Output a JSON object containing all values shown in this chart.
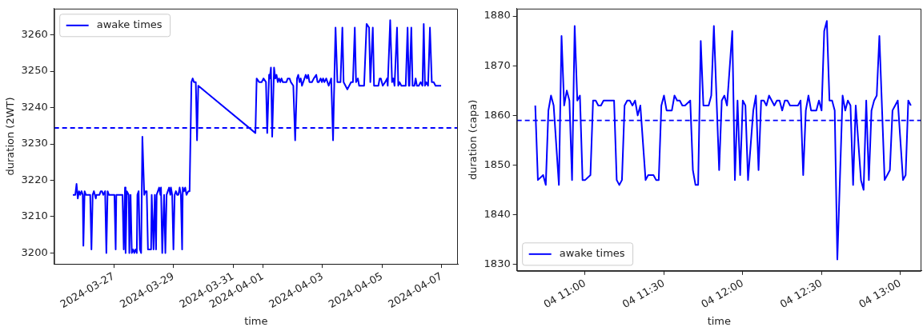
{
  "chart_data": [
    {
      "type": "line",
      "xlabel": "time",
      "ylabel": "duration (2WT)",
      "legend": "top left",
      "marker": "none",
      "line_style": "solid",
      "grid": false,
      "xlim": [
        "2024-03-25T00:00",
        "2024-04-07T13:00"
      ],
      "xticks": [
        "2024-03-27",
        "2024-03-29",
        "2024-03-31",
        "2024-04-01",
        "2024-04-03",
        "2024-04-05",
        "2024-04-07"
      ],
      "ylim": [
        3197,
        3267.2
      ],
      "yticks": [
        3200,
        3210,
        3220,
        3230,
        3240,
        3250,
        3260
      ],
      "ref_lines": [
        {
          "axis": "y",
          "value": 3234.4,
          "color": "#0000ff",
          "line_style": "dashed"
        }
      ],
      "x": [
        "2024-03-25T15:00",
        "2024-03-25T17:00",
        "2024-03-25T18:00",
        "2024-03-25T19:00",
        "2024-03-25T20:00",
        "2024-03-25T21:00",
        "2024-03-25T22:00",
        "2024-03-25T23:00",
        "2024-03-25T23:30",
        "2024-03-26T00:30",
        "2024-03-26T01:30",
        "2024-03-26T03:30",
        "2024-03-26T05:00",
        "2024-03-26T06:00",
        "2024-03-26T07:00",
        "2024-03-26T08:00",
        "2024-03-26T09:30",
        "2024-03-26T10:00",
        "2024-03-26T11:30",
        "2024-03-26T12:30",
        "2024-03-26T13:30",
        "2024-03-26T14:30",
        "2024-03-26T15:30",
        "2024-03-26T17:00",
        "2024-03-26T18:00",
        "2024-03-26T19:00",
        "2024-03-26T20:00",
        "2024-03-26T21:00",
        "2024-03-26T23:30",
        "2024-03-27T00:30",
        "2024-03-27T01:30",
        "2024-03-27T02:00",
        "2024-03-27T03:30",
        "2024-03-27T05:30",
        "2024-03-27T07:00",
        "2024-03-27T08:00",
        "2024-03-27T09:00",
        "2024-03-27T09:30",
        "2024-03-27T10:30",
        "2024-03-27T12:00",
        "2024-03-27T12:30",
        "2024-03-27T13:30",
        "2024-03-27T14:30",
        "2024-03-27T15:30",
        "2024-03-27T16:30",
        "2024-03-27T17:30",
        "2024-03-27T18:30",
        "2024-03-27T19:00",
        "2024-03-27T20:00",
        "2024-03-27T21:00",
        "2024-03-27T22:00",
        "2024-03-27T23:00",
        "2024-03-28T00:30",
        "2024-03-28T01:30",
        "2024-03-28T02:30",
        "2024-03-28T03:30",
        "2024-03-28T05:00",
        "2024-03-28T06:00",
        "2024-03-28T06:30",
        "2024-03-28T08:00",
        "2024-03-28T09:00",
        "2024-03-28T10:00",
        "2024-03-28T10:30",
        "2024-03-28T11:30",
        "2024-03-28T12:30",
        "2024-03-28T13:30",
        "2024-03-28T14:00",
        "2024-03-28T15:00",
        "2024-03-28T16:30",
        "2024-03-28T17:30",
        "2024-03-28T18:30",
        "2024-03-28T19:30",
        "2024-03-28T20:30",
        "2024-03-28T21:30",
        "2024-03-28T22:00",
        "2024-03-28T23:00",
        "2024-03-29T00:00",
        "2024-03-29T01:00",
        "2024-03-29T02:00",
        "2024-03-29T03:00",
        "2024-03-29T04:00",
        "2024-03-29T05:00",
        "2024-03-29T06:00",
        "2024-03-29T07:00",
        "2024-03-29T07:30",
        "2024-03-29T08:30",
        "2024-03-29T09:30",
        "2024-03-29T10:30",
        "2024-03-29T12:00",
        "2024-03-29T13:00",
        "2024-03-29T14:30",
        "2024-03-29T15:30",
        "2024-03-29T16:30",
        "2024-03-29T18:00",
        "2024-03-29T19:00",
        "2024-03-29T20:00",
        "2024-03-31T18:00",
        "2024-03-31T19:00",
        "2024-03-31T21:00",
        "2024-03-31T23:00",
        "2024-04-01T00:30",
        "2024-04-01T02:30",
        "2024-04-01T03:30",
        "2024-04-01T05:00",
        "2024-04-01T05:30",
        "2024-04-01T06:30",
        "2024-04-01T07:30",
        "2024-04-01T09:00",
        "2024-04-01T10:00",
        "2024-04-01T11:00",
        "2024-04-01T12:00",
        "2024-04-01T13:00",
        "2024-04-01T14:00",
        "2024-04-01T15:00",
        "2024-04-01T16:00",
        "2024-04-01T17:30",
        "2024-04-01T19:00",
        "2024-04-01T20:00",
        "2024-04-01T21:30",
        "2024-04-01T22:30",
        "2024-04-02T00:30",
        "2024-04-02T02:00",
        "2024-04-02T03:30",
        "2024-04-02T04:30",
        "2024-04-02T05:30",
        "2024-04-02T06:30",
        "2024-04-02T07:30",
        "2024-04-02T08:30",
        "2024-04-02T10:30",
        "2024-04-02T11:30",
        "2024-04-02T12:30",
        "2024-04-02T13:30",
        "2024-04-02T15:30",
        "2024-04-02T17:00",
        "2024-04-02T19:00",
        "2024-04-02T20:00",
        "2024-04-02T21:00",
        "2024-04-02T22:30",
        "2024-04-02T23:30",
        "2024-04-03T00:30",
        "2024-04-03T01:30",
        "2024-04-03T03:00",
        "2024-04-03T04:00",
        "2024-04-03T05:00",
        "2024-04-03T06:00",
        "2024-04-03T07:00",
        "2024-04-03T08:30",
        "2024-04-03T09:30",
        "2024-04-03T10:30",
        "2024-04-03T12:00",
        "2024-04-03T13:00",
        "2024-04-03T14:30",
        "2024-04-03T16:00",
        "2024-04-03T17:00",
        "2024-04-03T18:30",
        "2024-04-03T20:00",
        "2024-04-03T21:30",
        "2024-04-03T23:00",
        "2024-04-04T00:30",
        "2024-04-04T02:00",
        "2024-04-04T03:00",
        "2024-04-04T04:30",
        "2024-04-04T05:30",
        "2024-04-04T07:00",
        "2024-04-04T09:30",
        "2024-04-04T11:30",
        "2024-04-04T13:30",
        "2024-04-04T14:30",
        "2024-04-04T16:30",
        "2024-04-04T17:30",
        "2024-04-04T19:00",
        "2024-04-04T21:00",
        "2024-04-04T22:00",
        "2024-04-04T23:00",
        "2024-04-05T00:30",
        "2024-04-05T02:30",
        "2024-04-05T04:00",
        "2024-04-05T04:30",
        "2024-04-05T06:30",
        "2024-04-05T08:00",
        "2024-04-05T09:00",
        "2024-04-05T10:00",
        "2024-04-05T12:00",
        "2024-04-05T13:00",
        "2024-04-05T14:00",
        "2024-04-05T15:30",
        "2024-04-05T17:00",
        "2024-04-05T19:00",
        "2024-04-05T20:30",
        "2024-04-05T21:30",
        "2024-04-05T22:00",
        "2024-04-05T23:30",
        "2024-04-06T00:30",
        "2024-04-06T02:00",
        "2024-04-06T03:00",
        "2024-04-06T04:00",
        "2024-04-06T05:30",
        "2024-04-06T07:00",
        "2024-04-06T08:30",
        "2024-04-06T09:30",
        "2024-04-06T10:30",
        "2024-04-06T11:30",
        "2024-04-06T13:00",
        "2024-04-06T14:30",
        "2024-04-06T16:00",
        "2024-04-06T17:30",
        "2024-04-06T19:00",
        "2024-04-06T23:30"
      ],
      "series": [
        {
          "name": "awake times",
          "color": "#0000ff",
          "values": [
            3216,
            3216,
            3219,
            3215,
            3217,
            3216,
            3217,
            3216,
            3202,
            3217,
            3216,
            3216,
            3216,
            3201,
            3216,
            3217,
            3215,
            3216,
            3216,
            3216,
            3217,
            3217,
            3216,
            3217,
            3200,
            3217,
            3216,
            3216,
            3216,
            3216,
            3201,
            3216,
            3216,
            3216,
            3216,
            3201,
            3218,
            3200,
            3217,
            3216,
            3200,
            3216,
            3200,
            3201,
            3200,
            3201,
            3200,
            3216,
            3217,
            3201,
            3200,
            3232,
            3216,
            3217,
            3217,
            3201,
            3201,
            3201,
            3216,
            3201,
            3216,
            3201,
            3216,
            3217,
            3218,
            3216,
            3218,
            3200,
            3216,
            3200,
            3216,
            3217,
            3218,
            3216,
            3218,
            3216,
            3201,
            3216,
            3217,
            3216,
            3216,
            3218,
            3216,
            3201,
            3218,
            3217,
            3218,
            3216,
            3217,
            3217,
            3247,
            3248,
            3247,
            3247,
            3231,
            3246,
            3233,
            3248,
            3247,
            3247,
            3248,
            3247,
            3233,
            3249,
            3248,
            3251,
            3232,
            3251,
            3248,
            3249,
            3247,
            3248,
            3247,
            3248,
            3247,
            3247,
            3247,
            3248,
            3248,
            3247,
            3246,
            3231,
            3248,
            3249,
            3247,
            3248,
            3246,
            3247,
            3249,
            3248,
            3249,
            3247,
            3247,
            3248,
            3249,
            3247,
            3247,
            3248,
            3247,
            3248,
            3247,
            3248,
            3247,
            3246,
            3247,
            3248,
            3231,
            3247,
            3262,
            3247,
            3247,
            3247,
            3262,
            3247,
            3246,
            3245,
            3246,
            3247,
            3247,
            3262,
            3247,
            3248,
            3246,
            3246,
            3246,
            3263,
            3262,
            3247,
            3262,
            3246,
            3246,
            3246,
            3248,
            3248,
            3246,
            3247,
            3248,
            3246,
            3264,
            3247,
            3248,
            3246,
            3262,
            3246,
            3247,
            3246,
            3246,
            3246,
            3262,
            3246,
            3246,
            3262,
            3246,
            3246,
            3248,
            3246,
            3246,
            3247,
            3246,
            3263,
            3246,
            3247,
            3246,
            3262,
            3247,
            3247,
            3246,
            3246
          ]
        }
      ]
    },
    {
      "type": "line",
      "xlabel": "time",
      "ylabel": "duration (capa)",
      "legend": "bottom left",
      "marker": "none",
      "line_style": "solid",
      "grid": false,
      "xlim": [
        "--04-04T10:34",
        "--04-04T13:08"
      ],
      "xticks": [
        {
          "value": "--04-04T11:00",
          "label": "04 11:00"
        },
        {
          "value": "--04-04T11:30",
          "label": "04 11:30"
        },
        {
          "value": "--04-04T12:00",
          "label": "04 12:00"
        },
        {
          "value": "--04-04T12:30",
          "label": "04 12:30"
        },
        {
          "value": "--04-04T13:00",
          "label": "04 13:00"
        }
      ],
      "ylim": [
        1828.7,
        1881.5
      ],
      "yticks": [
        1830,
        1840,
        1850,
        1860,
        1870,
        1880
      ],
      "ref_lines": [
        {
          "axis": "y",
          "value": 1859,
          "color": "#0000ff",
          "line_style": "dashed"
        }
      ],
      "x": [
        "--04-04T10:41",
        "--04-04T10:42",
        "--04-04T10:44",
        "--04-04T10:45",
        "--04-04T10:46",
        "--04-04T10:47",
        "--04-04T10:48",
        "--04-04T10:50",
        "--04-04T10:51",
        "--04-04T10:52",
        "--04-04T10:53",
        "--04-04T10:54",
        "--04-04T10:55",
        "--04-04T10:56",
        "--04-04T10:57",
        "--04-04T10:58",
        "--04-04T10:59",
        "--04-04T11:00",
        "--04-04T11:02",
        "--04-04T11:03",
        "--04-04T11:04",
        "--04-04T11:05",
        "--04-04T11:06",
        "--04-04T11:07",
        "--04-04T11:08",
        "--04-04T11:09",
        "--04-04T11:11",
        "--04-04T11:12",
        "--04-04T11:13",
        "--04-04T11:14",
        "--04-04T11:15",
        "--04-04T11:16",
        "--04-04T11:17",
        "--04-04T11:18",
        "--04-04T11:19",
        "--04-04T11:20",
        "--04-04T11:21",
        "--04-04T11:23",
        "--04-04T11:24",
        "--04-04T11:25",
        "--04-04T11:26",
        "--04-04T11:27",
        "--04-04T11:28",
        "--04-04T11:29",
        "--04-04T11:30",
        "--04-04T11:31",
        "--04-04T11:33",
        "--04-04T11:34",
        "--04-04T11:35",
        "--04-04T11:36",
        "--04-04T11:37",
        "--04-04T11:38",
        "--04-04T11:40",
        "--04-04T11:41",
        "--04-04T11:42",
        "--04-04T11:43",
        "--04-04T11:44",
        "--04-04T11:45",
        "--04-04T11:47",
        "--04-04T11:48",
        "--04-04T11:49",
        "--04-04T11:51",
        "--04-04T11:52",
        "--04-04T11:53",
        "--04-04T11:54",
        "--04-04T11:56",
        "--04-04T11:57",
        "--04-04T11:58",
        "--04-04T11:59",
        "--04-04T12:00",
        "--04-04T12:01",
        "--04-04T12:02",
        "--04-04T12:04",
        "--04-04T12:05",
        "--04-04T12:06",
        "--04-04T12:07",
        "--04-04T12:08",
        "--04-04T12:09",
        "--04-04T12:10",
        "--04-04T12:12",
        "--04-04T12:13",
        "--04-04T12:14",
        "--04-04T12:15",
        "--04-04T12:16",
        "--04-04T12:17",
        "--04-04T12:18",
        "--04-04T12:20",
        "--04-04T12:21",
        "--04-04T12:22",
        "--04-04T12:23",
        "--04-04T12:24",
        "--04-04T12:25",
        "--04-04T12:26",
        "--04-04T12:28",
        "--04-04T12:29",
        "--04-04T12:30",
        "--04-04T12:31",
        "--04-04T12:32",
        "--04-04T12:33",
        "--04-04T12:34",
        "--04-04T12:35",
        "--04-04T12:36",
        "--04-04T12:38",
        "--04-04T12:39",
        "--04-04T12:40",
        "--04-04T12:41",
        "--04-04T12:42",
        "--04-04T12:43",
        "--04-04T12:45",
        "--04-04T12:46",
        "--04-04T12:47",
        "--04-04T12:48",
        "--04-04T12:49",
        "--04-04T12:50",
        "--04-04T12:51",
        "--04-04T12:52",
        "--04-04T12:54",
        "--04-04T12:55",
        "--04-04T12:56",
        "--04-04T12:57",
        "--04-04T12:58",
        "--04-04T12:59",
        "--04-04T13:01",
        "--04-04T13:02",
        "--04-04T13:03",
        "--04-04T13:04"
      ],
      "series": [
        {
          "name": "awake times",
          "color": "#0000ff",
          "values": [
            1862,
            1847,
            1848,
            1846,
            1861,
            1864,
            1862,
            1846,
            1876,
            1862,
            1865,
            1863,
            1847,
            1878,
            1863,
            1864,
            1847,
            1847,
            1848,
            1863,
            1863,
            1862,
            1862,
            1863,
            1863,
            1863,
            1863,
            1847,
            1846,
            1847,
            1862,
            1863,
            1863,
            1862,
            1863,
            1860,
            1862,
            1847,
            1848,
            1848,
            1848,
            1847,
            1847,
            1862,
            1864,
            1861,
            1861,
            1864,
            1863,
            1863,
            1862,
            1862,
            1863,
            1849,
            1846,
            1846,
            1875,
            1862,
            1862,
            1864,
            1878,
            1849,
            1863,
            1864,
            1862,
            1877,
            1847,
            1863,
            1848,
            1863,
            1862,
            1847,
            1861,
            1864,
            1849,
            1863,
            1863,
            1862,
            1864,
            1862,
            1863,
            1863,
            1861,
            1863,
            1863,
            1862,
            1862,
            1862,
            1863,
            1848,
            1861,
            1864,
            1861,
            1861,
            1863,
            1861,
            1877,
            1879,
            1863,
            1863,
            1861,
            1831,
            1864,
            1861,
            1863,
            1862,
            1846,
            1862,
            1847,
            1845,
            1863,
            1847,
            1861,
            1863,
            1864,
            1876,
            1847,
            1848,
            1849,
            1861,
            1862,
            1863,
            1847,
            1848,
            1863,
            1862
          ]
        }
      ]
    }
  ]
}
